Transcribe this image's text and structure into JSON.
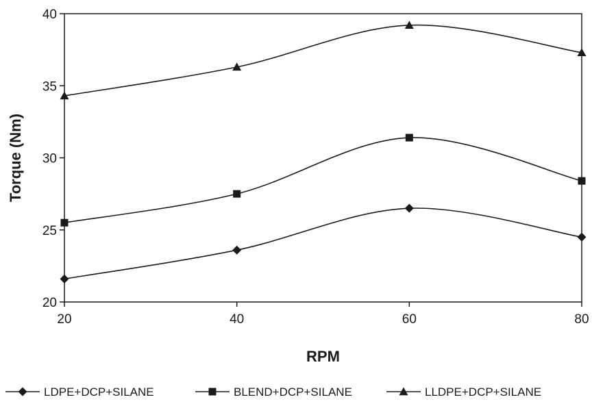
{
  "chart_data": {
    "type": "line",
    "title": "",
    "xlabel": "RPM",
    "ylabel": "Torque (Nm)",
    "x": [
      20,
      40,
      60,
      80
    ],
    "xlim": [
      20,
      80
    ],
    "ylim": [
      20,
      40
    ],
    "xticks": [
      "20",
      "40",
      "60",
      "80"
    ],
    "yticks": [
      "20",
      "25",
      "30",
      "35",
      "40"
    ],
    "smooth": true,
    "grid": false,
    "legend_position": "bottom",
    "series": [
      {
        "name": "LDPE+DCP+SILANE",
        "marker": "diamond",
        "color": "#1a1a1a",
        "values": [
          21.6,
          23.6,
          26.5,
          24.5
        ]
      },
      {
        "name": "BLEND+DCP+SILANE",
        "marker": "square",
        "color": "#1a1a1a",
        "values": [
          25.5,
          27.5,
          31.4,
          28.4
        ]
      },
      {
        "name": "LLDPE+DCP+SILANE",
        "marker": "triangle",
        "color": "#1a1a1a",
        "values": [
          34.3,
          36.3,
          39.2,
          37.3
        ]
      }
    ]
  }
}
